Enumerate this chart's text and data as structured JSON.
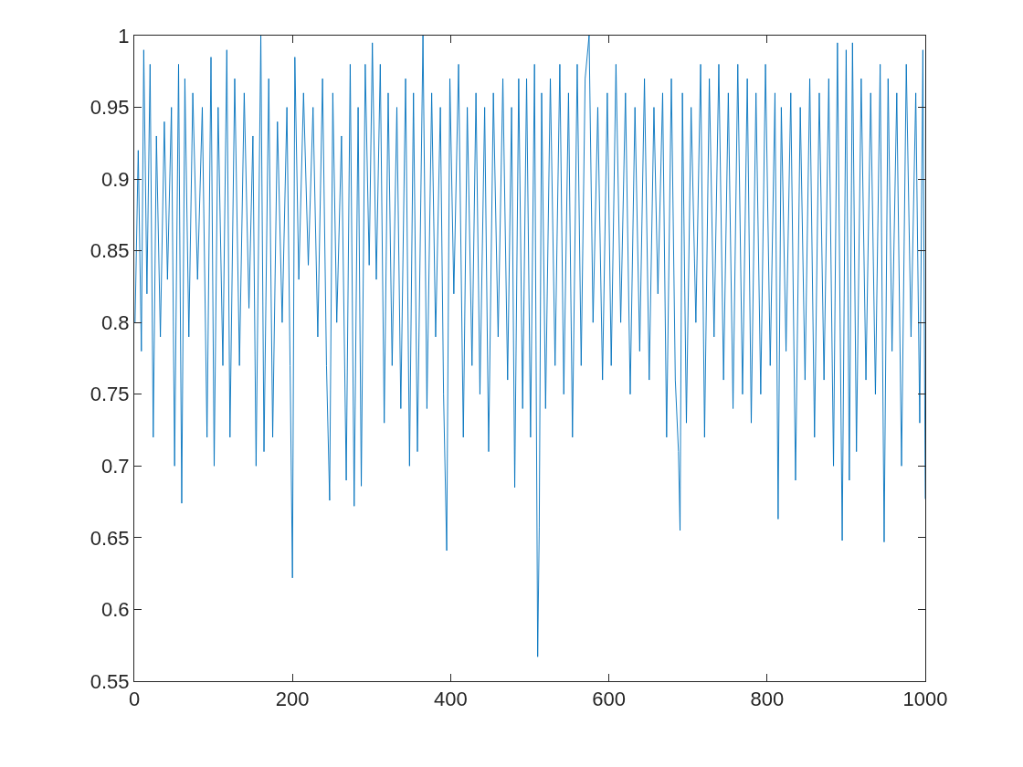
{
  "chart_data": {
    "type": "line",
    "xlim": [
      0,
      1000
    ],
    "ylim": [
      0.55,
      1
    ],
    "xticks": [
      0,
      200,
      400,
      600,
      800,
      1000
    ],
    "yticks": [
      0.55,
      0.6,
      0.65,
      0.7,
      0.75,
      0.8,
      0.85,
      0.9,
      0.95,
      1
    ],
    "marker": "none",
    "line_style": "solid",
    "series": [
      {
        "color": "#0072bd",
        "x": [
          1,
          5,
          9,
          12,
          16,
          20,
          24,
          28,
          33,
          38,
          42,
          47,
          51,
          56,
          60,
          64,
          69,
          74,
          80,
          86,
          92,
          97,
          101,
          106,
          112,
          117,
          121,
          127,
          133,
          139,
          145,
          150,
          154,
          160,
          164,
          170,
          175,
          181,
          187,
          193,
          197,
          200,
          203,
          208,
          214,
          220,
          226,
          232,
          238,
          243,
          247,
          251,
          256,
          262,
          268,
          273,
          278,
          283,
          287,
          292,
          297,
          301,
          306,
          311,
          316,
          321,
          326,
          332,
          337,
          343,
          348,
          353,
          358,
          365,
          370,
          376,
          381,
          387,
          391,
          395,
          399,
          404,
          410,
          416,
          421,
          427,
          432,
          437,
          443,
          448,
          454,
          460,
          466,
          472,
          477,
          481,
          486,
          491,
          496,
          501,
          506,
          510,
          512,
          515,
          520,
          526,
          532,
          538,
          543,
          549,
          554,
          560,
          565,
          570,
          575,
          580,
          586,
          592,
          598,
          603,
          609,
          615,
          621,
          627,
          633,
          639,
          645,
          651,
          657,
          662,
          668,
          673,
          679,
          684,
          688,
          690,
          693,
          698,
          704,
          710,
          716,
          721,
          727,
          733,
          739,
          745,
          751,
          757,
          763,
          769,
          775,
          780,
          786,
          792,
          798,
          804,
          810,
          814,
          818,
          824,
          830,
          836,
          842,
          848,
          854,
          860,
          866,
          872,
          878,
          884,
          889,
          895,
          900,
          904,
          908,
          913,
          919,
          925,
          931,
          937,
          943,
          948,
          953,
          958,
          964,
          970,
          976,
          982,
          988,
          993,
          997,
          1000
        ],
        "values": [
          0.8,
          0.92,
          0.78,
          0.99,
          0.82,
          0.98,
          0.72,
          0.93,
          0.79,
          0.94,
          0.83,
          0.95,
          0.7,
          0.98,
          0.674,
          0.97,
          0.79,
          0.96,
          0.83,
          0.95,
          0.72,
          0.985,
          0.7,
          0.95,
          0.77,
          0.99,
          0.72,
          0.97,
          0.77,
          0.96,
          0.81,
          0.93,
          0.7,
          1.0,
          0.71,
          0.97,
          0.72,
          0.94,
          0.8,
          0.95,
          0.77,
          0.622,
          0.985,
          0.83,
          0.96,
          0.84,
          0.95,
          0.79,
          0.97,
          0.77,
          0.676,
          0.96,
          0.8,
          0.93,
          0.69,
          0.98,
          0.672,
          0.95,
          0.686,
          0.98,
          0.84,
          0.995,
          0.83,
          0.98,
          0.73,
          0.96,
          0.77,
          0.95,
          0.74,
          0.97,
          0.7,
          0.96,
          0.71,
          1.0,
          0.74,
          0.96,
          0.79,
          0.95,
          0.75,
          0.641,
          0.97,
          0.82,
          0.98,
          0.72,
          0.95,
          0.77,
          0.96,
          0.75,
          0.95,
          0.71,
          0.96,
          0.79,
          0.97,
          0.76,
          0.95,
          0.685,
          0.97,
          0.74,
          0.97,
          0.72,
          0.98,
          0.567,
          0.657,
          0.96,
          0.74,
          0.97,
          0.77,
          0.98,
          0.75,
          0.96,
          0.72,
          0.98,
          0.77,
          0.97,
          1.0,
          0.8,
          0.95,
          0.76,
          0.96,
          0.77,
          0.98,
          0.8,
          0.96,
          0.75,
          0.95,
          0.78,
          0.97,
          0.76,
          0.95,
          0.82,
          0.96,
          0.72,
          0.97,
          0.76,
          0.71,
          0.655,
          0.96,
          0.73,
          0.95,
          0.8,
          0.98,
          0.72,
          0.97,
          0.79,
          0.98,
          0.76,
          0.96,
          0.74,
          0.98,
          0.75,
          0.97,
          0.73,
          0.96,
          0.75,
          0.98,
          0.77,
          0.96,
          0.663,
          0.95,
          0.78,
          0.96,
          0.69,
          0.95,
          0.76,
          0.97,
          0.72,
          0.96,
          0.76,
          0.97,
          0.7,
          0.995,
          0.648,
          0.99,
          0.69,
          0.995,
          0.71,
          0.97,
          0.76,
          0.96,
          0.75,
          0.98,
          0.647,
          0.97,
          0.78,
          0.96,
          0.7,
          0.98,
          0.79,
          0.96,
          0.73,
          0.99,
          0.677
        ]
      }
    ]
  }
}
